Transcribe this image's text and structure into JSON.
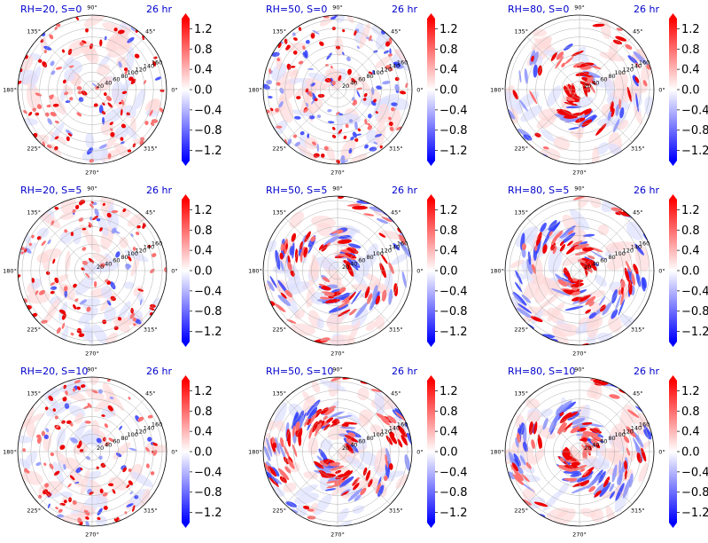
{
  "figure": {
    "time_label": "26 hr",
    "title_color": "#0000cc",
    "colormap": "bwr",
    "colors": {
      "pos": "#ff0000",
      "neg": "#0000ff",
      "zero": "#ffffff",
      "grid": "#b0b0b0"
    },
    "theta_ticks": [
      "0°",
      "45°",
      "90°",
      "135°",
      "180°",
      "225°",
      "270°",
      "315°"
    ],
    "r_ticks": [
      "20",
      "40",
      "60",
      "80",
      "100",
      "120",
      "140",
      "160"
    ],
    "r_max": 170,
    "colorbar": {
      "ticks": [
        "1.2",
        "0.8",
        "0.4",
        "0.0",
        "−0.4",
        "−0.8",
        "−1.2"
      ],
      "vmin": -1.4,
      "vmax": 1.4,
      "extend": "both"
    }
  },
  "chart_data": [
    {
      "type": "heatmap",
      "projection": "polar",
      "title": "RH=20, S=0",
      "rh": 20,
      "s": 0,
      "pattern": "scatter-cells",
      "counts": {
        "red": 90,
        "blue": 20
      }
    },
    {
      "type": "heatmap",
      "projection": "polar",
      "title": "RH=50, S=0",
      "rh": 50,
      "s": 0,
      "pattern": "scatter-cells",
      "counts": {
        "red": 80,
        "blue": 70
      }
    },
    {
      "type": "heatmap",
      "projection": "polar",
      "title": "RH=80, S=0",
      "rh": 80,
      "s": 0,
      "pattern": "spiral-core",
      "counts": {
        "red": 70,
        "blue": 40
      }
    },
    {
      "type": "heatmap",
      "projection": "polar",
      "title": "RH=20, S=5",
      "rh": 20,
      "s": 5,
      "pattern": "scatter-cells",
      "counts": {
        "red": 85,
        "blue": 20
      }
    },
    {
      "type": "heatmap",
      "projection": "polar",
      "title": "RH=50, S=5",
      "rh": 50,
      "s": 5,
      "pattern": "spiral-bands",
      "counts": {
        "red": 80,
        "blue": 60
      }
    },
    {
      "type": "heatmap",
      "projection": "polar",
      "title": "RH=80, S=5",
      "rh": 80,
      "s": 5,
      "pattern": "spiral-core",
      "counts": {
        "red": 80,
        "blue": 60
      }
    },
    {
      "type": "heatmap",
      "projection": "polar",
      "title": "RH=20, S=10",
      "rh": 20,
      "s": 10,
      "pattern": "scatter-cells",
      "counts": {
        "red": 85,
        "blue": 30
      }
    },
    {
      "type": "heatmap",
      "projection": "polar",
      "title": "RH=50, S=10",
      "rh": 50,
      "s": 10,
      "pattern": "spiral-bands",
      "counts": {
        "red": 100,
        "blue": 70
      }
    },
    {
      "type": "heatmap",
      "projection": "polar",
      "title": "RH=80, S=10",
      "rh": 80,
      "s": 10,
      "pattern": "spiral-core",
      "counts": {
        "red": 90,
        "blue": 80
      }
    }
  ]
}
